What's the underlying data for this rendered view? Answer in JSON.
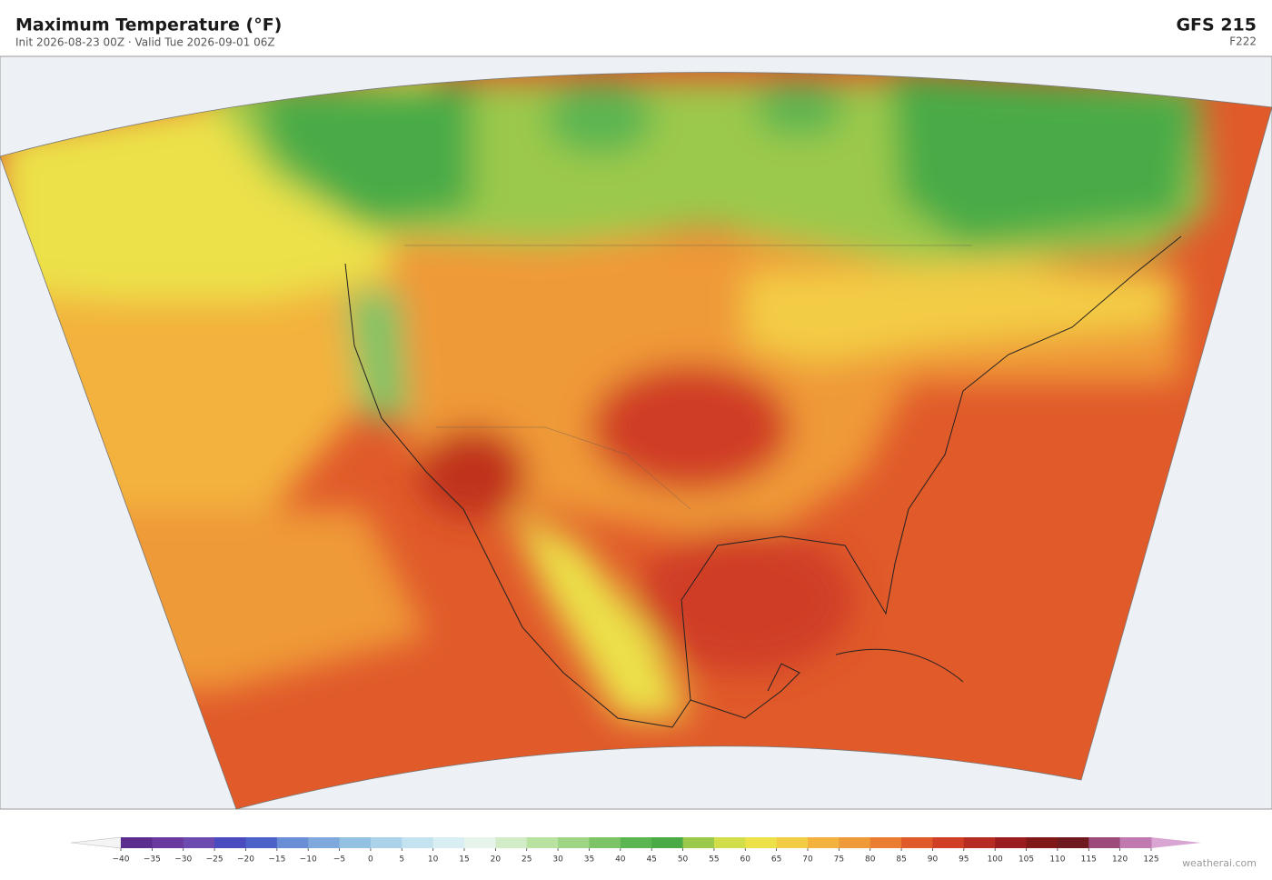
{
  "header": {
    "title": "Maximum Temperature  (°F)",
    "subtitle": "Init 2026-08-23 00Z  ·  Valid Tue 2026-09-01 06Z",
    "model": "GFS  215",
    "forecast_hour": "F222"
  },
  "colorbar": {
    "ticks": [
      {
        "value": -40,
        "label": "−40"
      },
      {
        "value": -35,
        "label": "−35"
      },
      {
        "value": -30,
        "label": "−30"
      },
      {
        "value": -25,
        "label": "−25"
      },
      {
        "value": -20,
        "label": "−20"
      },
      {
        "value": -15,
        "label": "−15"
      },
      {
        "value": -10,
        "label": "−10"
      },
      {
        "value": -5,
        "label": "−5"
      },
      0,
      5,
      10,
      15,
      20,
      25,
      30,
      35,
      40,
      45,
      50,
      55,
      60,
      65,
      70,
      75,
      80,
      85,
      90,
      95,
      100,
      105,
      110,
      115,
      120,
      125
    ],
    "colors": [
      "#5b2d8e",
      "#6a3a9e",
      "#6d4ab0",
      "#4a4bbf",
      "#4c62c8",
      "#6a8ed6",
      "#7fa8dc",
      "#93c1e2",
      "#aad3ea",
      "#c2e3ef",
      "#d8eef3",
      "#e6f4ec",
      "#d2ecc8",
      "#b9e2a0",
      "#9dd585",
      "#7dc466",
      "#5bb551",
      "#4aab46",
      "#9bc94b",
      "#d2dd4a",
      "#ece148",
      "#f3cc45",
      "#f3b23e",
      "#ef9a38",
      "#eb7d33",
      "#e05a2a",
      "#d03e26",
      "#b72c22",
      "#9a1c1e",
      "#801818",
      "#6e1a1e",
      "#9c4a7a",
      "#c07ab0"
    ],
    "under_color": "#f4f4f4",
    "over_color": "#d9a6d3"
  },
  "footer": {
    "credit": "weatherai.com"
  }
}
